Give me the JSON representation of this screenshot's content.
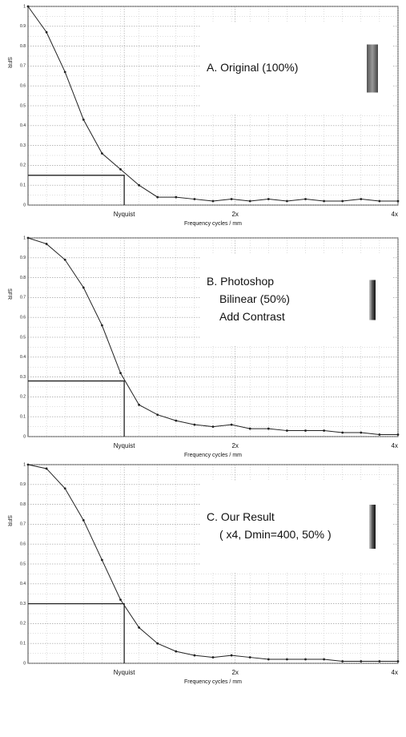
{
  "chart_data": [
    {
      "type": "line",
      "annotation": [
        "A. Original (100%)"
      ],
      "x_label": "Frequency cycles / mm",
      "y_label": "SFR",
      "x": [
        0,
        0.05,
        0.1,
        0.15,
        0.2,
        0.25,
        0.3,
        0.35,
        0.4,
        0.45,
        0.5,
        0.55,
        0.6,
        0.65,
        0.7,
        0.75,
        0.8,
        0.85,
        0.9,
        0.95,
        1
      ],
      "series": [
        {
          "name": "SFR",
          "color": "#222",
          "values": [
            1.0,
            0.87,
            0.67,
            0.43,
            0.26,
            0.18,
            0.1,
            0.04,
            0.04,
            0.03,
            0.02,
            0.03,
            0.02,
            0.03,
            0.02,
            0.03,
            0.02,
            0.02,
            0.03,
            0.02,
            0.02
          ]
        }
      ],
      "nyquist": {
        "x": 0.26,
        "y": 0.15
      },
      "xlim": [
        0,
        1
      ],
      "ylim": [
        0,
        1
      ],
      "xticks": [
        {
          "value": 0.26,
          "label": "Nyquist"
        },
        {
          "value": 0.56,
          "label": "2x"
        },
        {
          "value": 1,
          "label": "4x"
        }
      ],
      "yticks": [
        0,
        0.1,
        0.2,
        0.3,
        0.4,
        0.5,
        0.6,
        0.7,
        0.8,
        0.9,
        1
      ],
      "grid": true
    },
    {
      "type": "line",
      "annotation": [
        "B. Photoshop",
        "Bilinear (50%)",
        "Add Contrast"
      ],
      "x_label": "Frequency cycles / mm",
      "y_label": "SFR",
      "x": [
        0,
        0.05,
        0.1,
        0.15,
        0.2,
        0.25,
        0.3,
        0.35,
        0.4,
        0.45,
        0.5,
        0.55,
        0.6,
        0.65,
        0.7,
        0.75,
        0.8,
        0.85,
        0.9,
        0.95,
        1
      ],
      "series": [
        {
          "name": "SFR",
          "color": "#222",
          "values": [
            1.0,
            0.97,
            0.89,
            0.75,
            0.56,
            0.32,
            0.16,
            0.11,
            0.08,
            0.06,
            0.05,
            0.06,
            0.04,
            0.04,
            0.03,
            0.03,
            0.03,
            0.02,
            0.02,
            0.01,
            0.01
          ]
        }
      ],
      "nyquist": {
        "x": 0.26,
        "y": 0.28
      },
      "xlim": [
        0,
        1
      ],
      "ylim": [
        0,
        1
      ],
      "xticks": [
        {
          "value": 0.26,
          "label": "Nyquist"
        },
        {
          "value": 0.56,
          "label": "2x"
        },
        {
          "value": 1,
          "label": "4x"
        }
      ],
      "yticks": [
        0,
        0.1,
        0.2,
        0.3,
        0.4,
        0.5,
        0.6,
        0.7,
        0.8,
        0.9,
        1
      ],
      "grid": true
    },
    {
      "type": "line",
      "annotation": [
        "C. Our Result",
        "( x4, Dmin=400, 50% )"
      ],
      "x_label": "Frequency cycles / mm",
      "y_label": "SFR",
      "x": [
        0,
        0.05,
        0.1,
        0.15,
        0.2,
        0.25,
        0.3,
        0.35,
        0.4,
        0.45,
        0.5,
        0.55,
        0.6,
        0.65,
        0.7,
        0.75,
        0.8,
        0.85,
        0.9,
        0.95,
        1
      ],
      "series": [
        {
          "name": "SFR",
          "color": "#222",
          "values": [
            1.0,
            0.98,
            0.88,
            0.72,
            0.52,
            0.32,
            0.18,
            0.1,
            0.06,
            0.04,
            0.03,
            0.04,
            0.03,
            0.02,
            0.02,
            0.02,
            0.02,
            0.01,
            0.01,
            0.01,
            0.01
          ]
        }
      ],
      "nyquist": {
        "x": 0.26,
        "y": 0.3
      },
      "xlim": [
        0,
        1
      ],
      "ylim": [
        0,
        1
      ],
      "xticks": [
        {
          "value": 0.26,
          "label": "Nyquist"
        },
        {
          "value": 0.56,
          "label": "2x"
        },
        {
          "value": 1,
          "label": "4x"
        }
      ],
      "yticks": [
        0,
        0.1,
        0.2,
        0.3,
        0.4,
        0.5,
        0.6,
        0.7,
        0.8,
        0.9,
        1
      ],
      "grid": true
    }
  ]
}
